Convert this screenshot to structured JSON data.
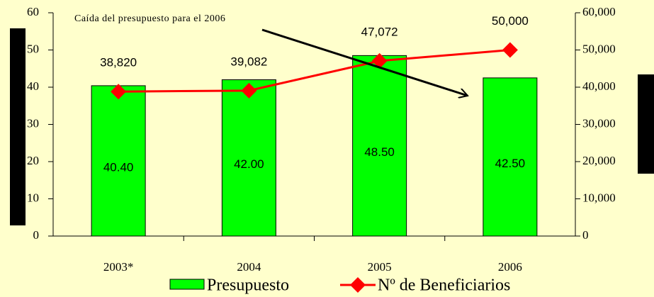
{
  "chart_data": {
    "type": "bar-line",
    "annotation": "Caída del presupuesto para el 2006",
    "categories": [
      "2003*",
      "2004",
      "2005",
      "2006"
    ],
    "series": [
      {
        "name": "Presupuesto",
        "color": "#00ff00",
        "values": [
          40.4,
          42.0,
          48.5,
          42.5
        ],
        "value_labels": [
          "40.40",
          "42.00",
          "48.50",
          "42.50"
        ]
      },
      {
        "name": "Nº de Beneficiarios",
        "color": "#ff0000",
        "axis": "y2",
        "values": [
          38820,
          39082,
          47072,
          50000
        ],
        "value_labels": [
          "38,820",
          "39,082",
          "47,072",
          "50,000"
        ]
      }
    ],
    "ylim": [
      0,
      60
    ],
    "yticks": [
      0,
      10,
      20,
      30,
      40,
      50,
      60
    ],
    "y2lim": [
      0,
      60000
    ],
    "y2ticks": [
      0,
      {
        "value": 10000,
        "label": "10,000"
      },
      {
        "value": 20000,
        "label": "20,000"
      },
      {
        "value": 30000,
        "label": "30,000"
      },
      {
        "value": 40000,
        "label": "40,000"
      },
      {
        "value": 50000,
        "label": "50,000"
      },
      {
        "value": 60000,
        "label": "60,000"
      }
    ]
  }
}
